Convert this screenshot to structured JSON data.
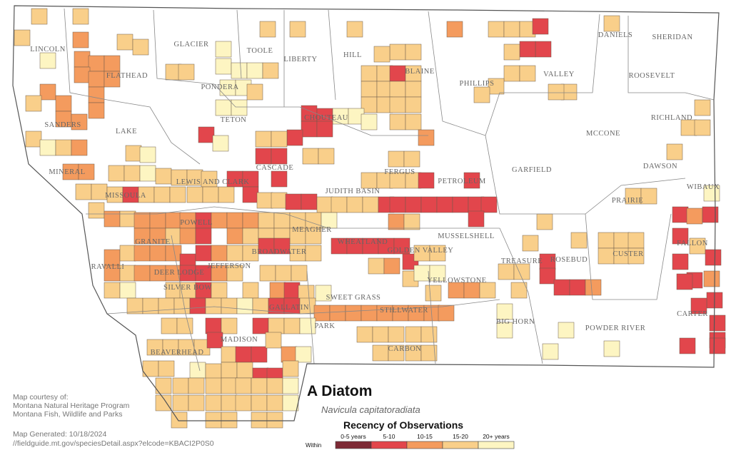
{
  "map": {
    "counties": [
      {
        "label": "LINCOLN"
      },
      {
        "label": "FLATHEAD"
      },
      {
        "label": "GLACIER"
      },
      {
        "label": "TOOLE"
      },
      {
        "label": "LIBERTY"
      },
      {
        "label": "HILL"
      },
      {
        "label": "BLAINE"
      },
      {
        "label": "PHILLIPS"
      },
      {
        "label": "VALLEY"
      },
      {
        "label": "DANIELS"
      },
      {
        "label": "SHERIDAN"
      },
      {
        "label": "ROOSEVELT"
      },
      {
        "label": "PONDERA"
      },
      {
        "label": "TETON"
      },
      {
        "label": "CHOUTEAU"
      },
      {
        "label": "SANDERS"
      },
      {
        "label": "LAKE"
      },
      {
        "label": "RICHLAND"
      },
      {
        "label": "MCCONE"
      },
      {
        "label": "CASCADE"
      },
      {
        "label": "FERGUS"
      },
      {
        "label": "GARFIELD"
      },
      {
        "label": "DAWSON"
      },
      {
        "label": "MINERAL"
      },
      {
        "label": "LEWIS AND CLARK"
      },
      {
        "label": "JUDITH BASIN"
      },
      {
        "label": "PETROLEUM"
      },
      {
        "label": "WIBAUX"
      },
      {
        "label": "MISSOULA"
      },
      {
        "label": "PRAIRIE"
      },
      {
        "label": "POWELL"
      },
      {
        "label": "MEAGHER"
      },
      {
        "label": "MUSSELSHELL"
      },
      {
        "label": "FALLON"
      },
      {
        "label": "GRANITE"
      },
      {
        "label": "WHEATLAND"
      },
      {
        "label": "GOLDEN VALLEY"
      },
      {
        "label": "CUSTER"
      },
      {
        "label": "BROADWATER"
      },
      {
        "label": "TREASURE"
      },
      {
        "label": "ROSEBUD"
      },
      {
        "label": "RAVALLI"
      },
      {
        "label": "DEER LODGE"
      },
      {
        "label": "JEFFERSON"
      },
      {
        "label": "YELLOWSTONE"
      },
      {
        "label": "SILVER BOW"
      },
      {
        "label": "SWEET GRASS"
      },
      {
        "label": "STILLWATER"
      },
      {
        "label": "CARTER"
      },
      {
        "label": "GALLATIN"
      },
      {
        "label": "PARK"
      },
      {
        "label": "BIG HORN"
      },
      {
        "label": "POWDER RIVER"
      },
      {
        "label": "MADISON"
      },
      {
        "label": "CARBON"
      },
      {
        "label": "BEAVERHEAD"
      }
    ]
  },
  "title": "A Diatom",
  "subtitle": "Navicula capitatoradiata",
  "legend": {
    "title": "Recency of Observations",
    "prefix": "Within",
    "items": [
      {
        "label": "0-5 years",
        "color": "#7d2a35"
      },
      {
        "label": "5-10",
        "color": "#e2464c"
      },
      {
        "label": "10-15",
        "color": "#f49b5e"
      },
      {
        "label": "15-20",
        "color": "#f9cf8a"
      },
      {
        "label": "20+ years",
        "color": "#fdf5c2"
      }
    ]
  },
  "credits": {
    "lines": [
      "Map courtesy of:",
      "Montana Natural Heritage Program",
      "Montana Fish, Wildlife and Parks"
    ]
  },
  "generated": {
    "date": "Map Generated: 10/18/2024",
    "url": "//fieldguide.mt.gov/speciesDetail.aspx?elcode=KBACI2P0S0"
  }
}
